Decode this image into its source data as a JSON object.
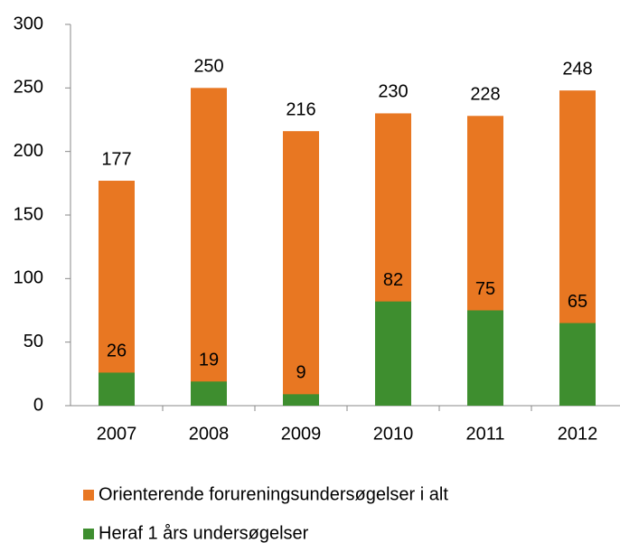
{
  "chart_data": {
    "type": "bar",
    "overlap": true,
    "categories": [
      "2007",
      "2008",
      "2009",
      "2010",
      "2011",
      "2012"
    ],
    "series": [
      {
        "name": "Orienterende forureningsundersøgelser i alt",
        "color": "#e87722",
        "values": [
          177,
          250,
          216,
          230,
          228,
          248
        ]
      },
      {
        "name": "Heraf 1 års undersøgelser",
        "color": "#3e8e2f",
        "values": [
          26,
          19,
          9,
          82,
          75,
          65
        ]
      }
    ],
    "ylim": [
      0,
      300
    ],
    "yticks": [
      0,
      50,
      100,
      150,
      200,
      250,
      300
    ],
    "grid": false,
    "legend": "bottom"
  }
}
